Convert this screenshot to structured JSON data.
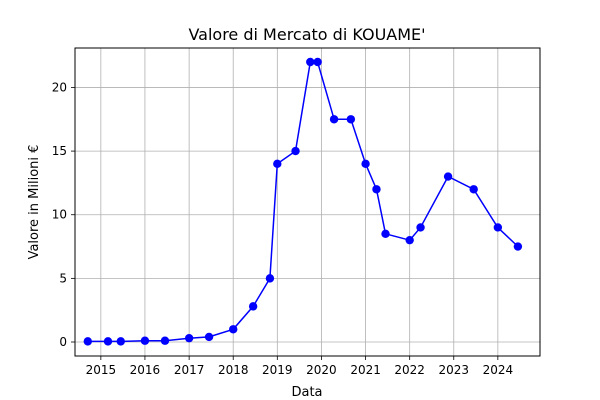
{
  "chart_data": {
    "type": "line",
    "title": "Valore di Mercato di KOUAME'",
    "xlabel": "Data",
    "ylabel": "Valore in Milioni €",
    "x_ticks": [
      "2015",
      "2016",
      "2017",
      "2018",
      "2019",
      "2020",
      "2021",
      "2022",
      "2023",
      "2024"
    ],
    "y_ticks": [
      "0",
      "5",
      "10",
      "15",
      "20"
    ],
    "xlim": [
      "2014-06-01",
      "2024-12-15"
    ],
    "ylim": [
      -1.1,
      23.1
    ],
    "grid": true,
    "color": "#0000ff",
    "series": [
      {
        "x": [
          "2014-09-15",
          "2015-03-01",
          "2015-06-15",
          "2016-01-01",
          "2016-06-15",
          "2017-01-01",
          "2017-06-15",
          "2018-01-01",
          "2018-06-15",
          "2018-11-01",
          "2019-01-01",
          "2019-06-01",
          "2019-10-01",
          "2019-12-01",
          "2020-04-15",
          "2020-09-01",
          "2021-01-01",
          "2021-04-01",
          "2021-06-15",
          "2022-01-01",
          "2022-04-01",
          "2022-11-15",
          "2023-06-15",
          "2024-01-01",
          "2024-06-15"
        ],
        "y": [
          0.05,
          0.05,
          0.05,
          0.1,
          0.1,
          0.3,
          0.4,
          1.0,
          2.8,
          5.0,
          14.0,
          15.0,
          22.0,
          22.0,
          17.5,
          17.5,
          14.0,
          12.0,
          8.5,
          8.0,
          9.0,
          13.0,
          12.0,
          9.0,
          7.5
        ]
      }
    ]
  }
}
